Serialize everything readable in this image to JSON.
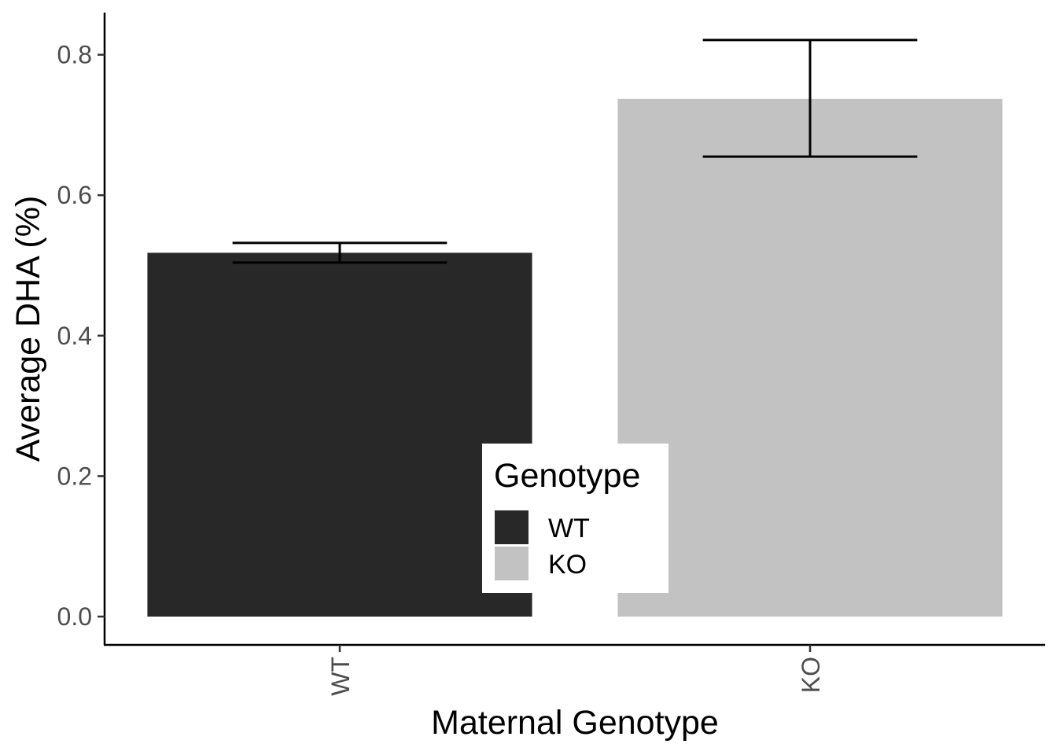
{
  "chart_data": {
    "type": "bar",
    "title": "",
    "xlabel": "Maternal Genotype",
    "ylabel": "Average DHA (%)",
    "categories": [
      "WT",
      "KO"
    ],
    "values": [
      0.518,
      0.737
    ],
    "error_bars": [
      {
        "lower": 0.504,
        "upper": 0.532
      },
      {
        "lower": 0.655,
        "upper": 0.821
      }
    ],
    "ylim": [
      0,
      0.85
    ],
    "yticks": [
      0.0,
      0.2,
      0.4,
      0.6,
      0.8
    ],
    "ytick_labels": [
      "0.0",
      "0.2",
      "0.4",
      "0.6",
      "0.8"
    ],
    "colors": {
      "WT": "#282828",
      "KO": "#c2c2c2"
    },
    "grid": false,
    "legend": {
      "title": "Genotype",
      "placement": "inside-bottom-center",
      "entries": [
        {
          "label": "WT",
          "color": "#282828"
        },
        {
          "label": "KO",
          "color": "#c2c2c2"
        }
      ]
    }
  }
}
